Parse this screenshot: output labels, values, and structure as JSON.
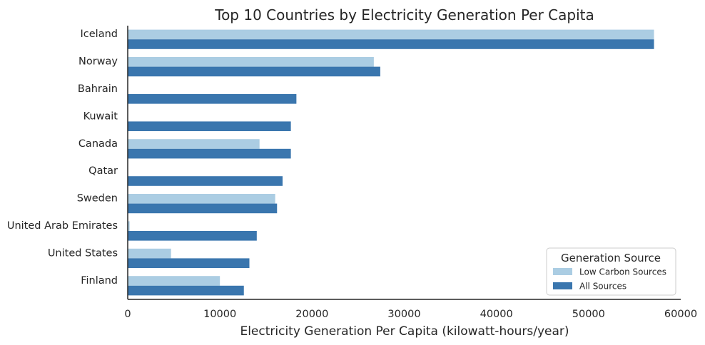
{
  "chart_data": {
    "type": "bar",
    "orientation": "horizontal",
    "title": "Top 10 Countries by Electricity Generation Per Capita",
    "xlabel": "Electricity Generation Per Capita (kilowatt-hours/year)",
    "ylabel": "",
    "xlim": [
      0,
      60000
    ],
    "xticks": [
      0,
      10000,
      20000,
      30000,
      40000,
      50000,
      60000
    ],
    "categories": [
      "Iceland",
      "Norway",
      "Bahrain",
      "Kuwait",
      "Canada",
      "Qatar",
      "Sweden",
      "United Arab Emirates",
      "United States",
      "Finland"
    ],
    "series": [
      {
        "name": "Low Carbon Sources",
        "color": "#abcde3",
        "values": [
          57100,
          26700,
          0,
          0,
          14300,
          0,
          16000,
          200,
          4700,
          10000
        ]
      },
      {
        "name": "All Sources",
        "color": "#3a76ae",
        "values": [
          57100,
          27400,
          18300,
          17700,
          17700,
          16800,
          16200,
          14000,
          13200,
          12600
        ]
      }
    ],
    "legend": {
      "title": "Generation Source",
      "placement": "bottom-right"
    },
    "grid": false
  }
}
